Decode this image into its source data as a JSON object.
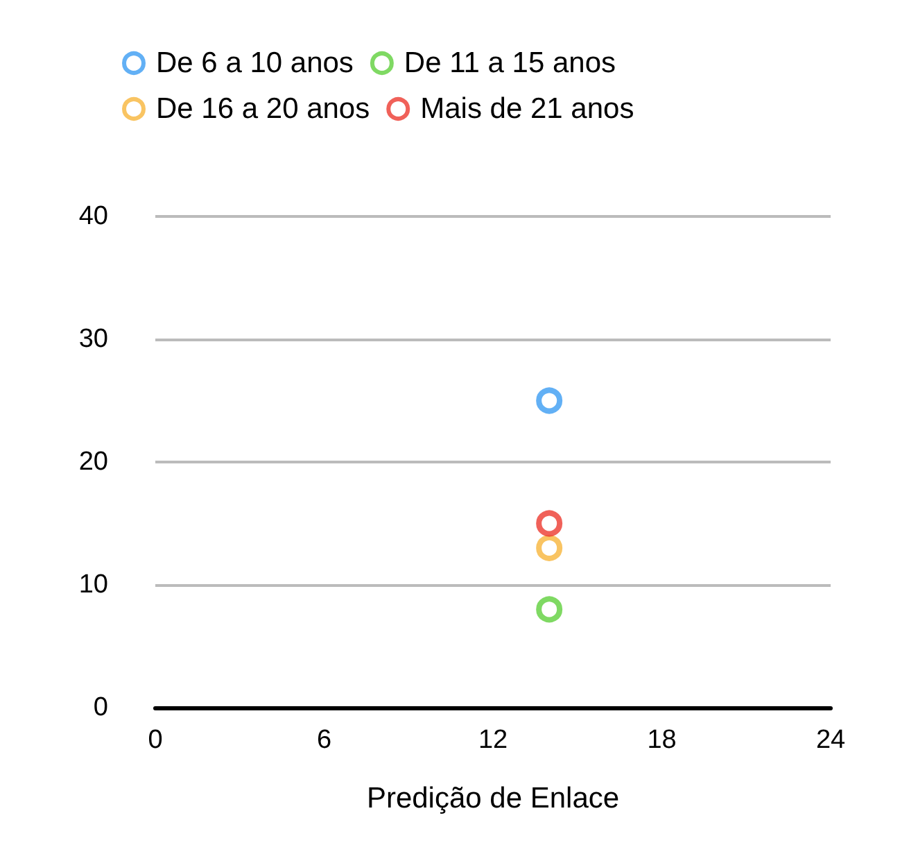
{
  "chart_data": {
    "type": "scatter",
    "xlabel": "Predição de Enlace",
    "xlim": [
      0,
      24
    ],
    "xticks": [
      0,
      6,
      12,
      18,
      24
    ],
    "ylim": [
      0,
      40
    ],
    "yticks": [
      0,
      10,
      20,
      30,
      40
    ],
    "grid": "y",
    "legend": "top",
    "marker": "circle",
    "x": [
      14
    ],
    "series": [
      {
        "name": "De 6 a 10 anos",
        "color": "#3b9cf2",
        "values": [
          25
        ]
      },
      {
        "name": "De 11 a 15 anos",
        "color": "#5fcf3c",
        "values": [
          8
        ]
      },
      {
        "name": "De 16 a 20 anos",
        "color": "#f7b53b",
        "values": [
          13
        ]
      },
      {
        "name": "Mais de 21 anos",
        "color": "#ec3a30",
        "values": [
          15
        ]
      }
    ]
  }
}
